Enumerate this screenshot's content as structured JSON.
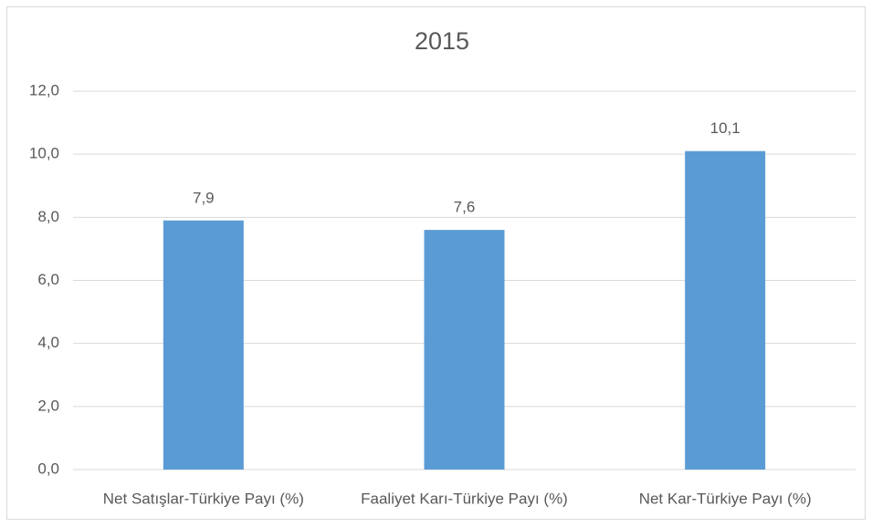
{
  "chart_data": {
    "type": "bar",
    "title": "2015",
    "categories": [
      "Net Satışlar-Türkiye Payı (%)",
      "Faaliyet Karı-Türkiye Payı (%)",
      "Net Kar-Türkiye Payı (%)"
    ],
    "values": [
      7.9,
      7.6,
      10.1
    ],
    "value_labels": [
      "7,9",
      "7,6",
      "10,1"
    ],
    "color": "#5b9bd5",
    "ylim": [
      0,
      12
    ],
    "yticks": [
      {
        "value": 0,
        "label": "0,0"
      },
      {
        "value": 2,
        "label": "2,0"
      },
      {
        "value": 4,
        "label": "4,0"
      },
      {
        "value": 6,
        "label": "6,0"
      },
      {
        "value": 8,
        "label": "8,0"
      },
      {
        "value": 10,
        "label": "10,0"
      },
      {
        "value": 12,
        "label": "12,0"
      }
    ],
    "grid": true
  }
}
